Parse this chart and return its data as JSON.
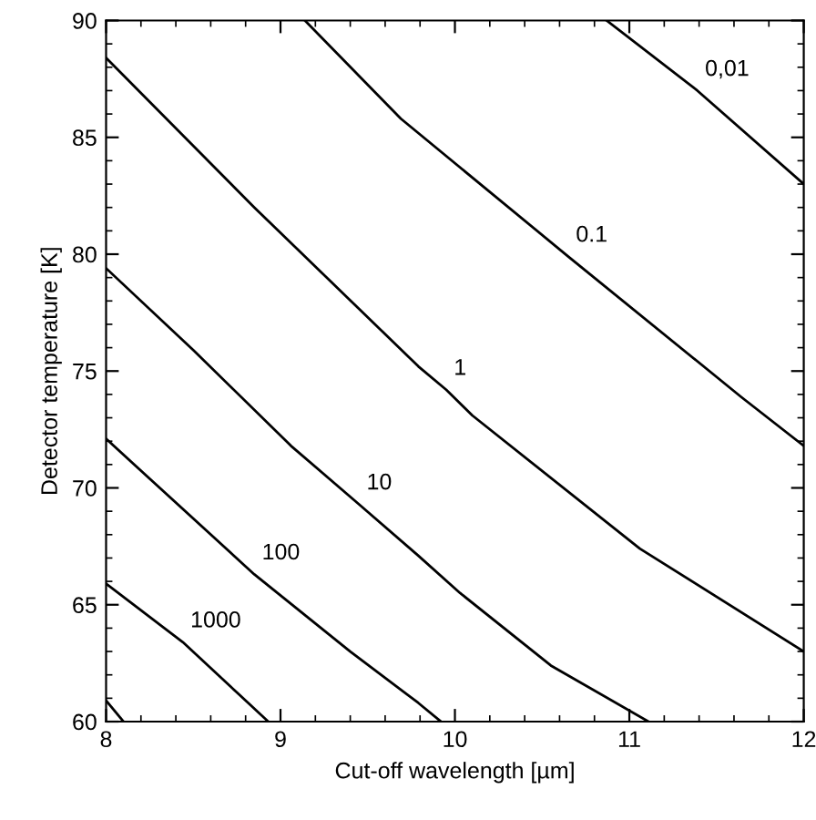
{
  "chart_data": {
    "type": "line",
    "xlabel": "Cut-off wavelength [µm]",
    "ylabel": "Detector temperature [K]",
    "xlim": [
      8,
      12
    ],
    "ylim": [
      60,
      90
    ],
    "xticks": [
      8,
      9,
      10,
      11,
      12
    ],
    "yticks": [
      60,
      65,
      70,
      75,
      80,
      85,
      90
    ],
    "grid": false,
    "legend": false,
    "marker": "none",
    "line_style": "solid",
    "series": [
      {
        "color": "#000000",
        "x": [
          8,
          8.1
        ],
        "values": [
          60.9,
          60
        ]
      },
      {
        "color": "#000000",
        "x": [
          8,
          8.44,
          8.93
        ],
        "values": [
          65.9,
          63.4,
          60
        ]
      },
      {
        "color": "#000000",
        "x": [
          8,
          8.85,
          9.4,
          9.79,
          9.92
        ],
        "values": [
          72.1,
          66.3,
          63.0,
          60.8,
          60
        ]
      },
      {
        "color": "#000000",
        "x": [
          8,
          8.5,
          9.06,
          9.45,
          9.79,
          10.03,
          10.55,
          11.11
        ],
        "values": [
          79.4,
          75.9,
          71.8,
          69.3,
          67.1,
          65.5,
          62.4,
          60
        ]
      },
      {
        "color": "#000000",
        "x": [
          8,
          8.85,
          9.79,
          9.95,
          10.1,
          11.06,
          12
        ],
        "values": [
          88.4,
          82.0,
          75.2,
          74.2,
          73.1,
          67.4,
          63.0
        ]
      },
      {
        "color": "#000000",
        "x": [
          9.14,
          9.69,
          10.65,
          11.64,
          12
        ],
        "values": [
          90,
          85.8,
          79.9,
          73.9,
          71.8
        ]
      },
      {
        "color": "#000000",
        "x": [
          10.87,
          11.39,
          12
        ],
        "values": [
          90,
          87.0,
          83.0
        ]
      }
    ],
    "annotations": [
      {
        "text": "0,01",
        "x": 11.39,
        "y": 87.0
      },
      {
        "text": "0.1",
        "x": 10.65,
        "y": 79.9
      },
      {
        "text": "1",
        "x": 9.95,
        "y": 74.2
      },
      {
        "text": "10",
        "x": 9.45,
        "y": 69.3
      },
      {
        "text": "100",
        "x": 8.85,
        "y": 66.3
      },
      {
        "text": "1000",
        "x": 8.44,
        "y": 63.4
      }
    ]
  }
}
